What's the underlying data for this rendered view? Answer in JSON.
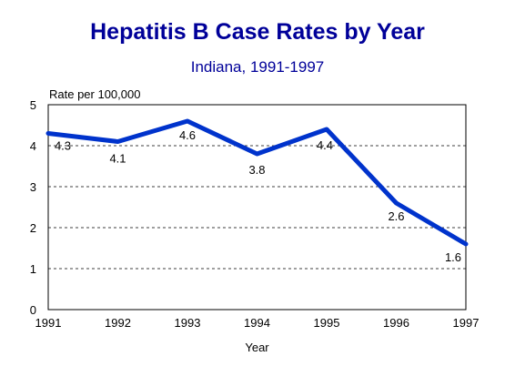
{
  "colors": {
    "title": "#000099",
    "line": "#0033cc",
    "axis": "#000000",
    "grid": "#000000",
    "text": "#000000"
  },
  "chart_data": {
    "type": "line",
    "title": "Hepatitis B Case Rates by Year",
    "subtitle": "Indiana, 1991-1997",
    "xlabel": "Year",
    "ylabel": "Rate per 100,000",
    "categories": [
      "1991",
      "1992",
      "1993",
      "1994",
      "1995",
      "1996",
      "1997"
    ],
    "series": [
      {
        "values": [
          4.3,
          4.1,
          4.6,
          3.8,
          4.4,
          2.6,
          1.6
        ]
      }
    ],
    "data_labels": [
      "4.3",
      "4.1",
      "4.6",
      "3.8",
      "4.4",
      "2.6",
      "1.6"
    ],
    "ylim": [
      0,
      5
    ],
    "yticks": [
      "0",
      "1",
      "2",
      "3",
      "4",
      "5"
    ],
    "grid": "horizontal dashed",
    "legend": "none"
  }
}
